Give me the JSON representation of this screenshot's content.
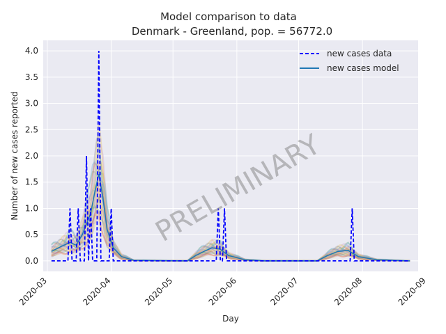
{
  "chart_data": {
    "type": "line",
    "title": "Model comparison to data",
    "subtitle": "Denmark - Greenland, pop. = 56772.0",
    "xlabel": "Day",
    "ylabel": "Number of new cases reported",
    "xlim": [
      "2020-02-28",
      "2020-08-28"
    ],
    "ylim": [
      -0.2,
      4.2
    ],
    "grid": true,
    "legend_position": "top-right",
    "x_ticks": [
      "2020-03-01",
      "2020-04-01",
      "2020-05-01",
      "2020-06-01",
      "2020-07-01",
      "2020-08-01",
      "2020-09-01"
    ],
    "x_tick_labels": [
      "2020-03",
      "2020-04",
      "2020-05",
      "2020-06",
      "2020-07",
      "2020-08",
      "2020-09"
    ],
    "y_ticks": [
      0.0,
      0.5,
      1.0,
      1.5,
      2.0,
      2.5,
      3.0,
      3.5,
      4.0
    ],
    "y_tick_labels": [
      "0.0",
      "0.5",
      "1.0",
      "1.5",
      "2.0",
      "2.5",
      "3.0",
      "3.5",
      "4.0"
    ],
    "watermark": "PRELIMINARY",
    "series": [
      {
        "name": "new cases data",
        "style": "dashed",
        "color": "#0000ff",
        "points": [
          [
            "2020-03-03",
            0
          ],
          [
            "2020-03-11",
            0
          ],
          [
            "2020-03-12",
            1
          ],
          [
            "2020-03-13",
            0
          ],
          [
            "2020-03-15",
            0
          ],
          [
            "2020-03-16",
            1
          ],
          [
            "2020-03-17",
            0
          ],
          [
            "2020-03-19",
            0
          ],
          [
            "2020-03-20",
            2
          ],
          [
            "2020-03-21",
            0
          ],
          [
            "2020-03-22",
            1
          ],
          [
            "2020-03-23",
            0
          ],
          [
            "2020-03-25",
            0
          ],
          [
            "2020-03-26",
            4
          ],
          [
            "2020-03-27",
            0
          ],
          [
            "2020-03-31",
            0
          ],
          [
            "2020-04-01",
            1
          ],
          [
            "2020-04-02",
            0
          ],
          [
            "2020-05-22",
            0
          ],
          [
            "2020-05-23",
            1
          ],
          [
            "2020-05-24",
            0
          ],
          [
            "2020-05-25",
            0
          ],
          [
            "2020-05-26",
            1
          ],
          [
            "2020-05-27",
            0
          ],
          [
            "2020-07-26",
            0
          ],
          [
            "2020-07-27",
            1
          ],
          [
            "2020-07-28",
            0
          ],
          [
            "2020-08-24",
            0
          ]
        ]
      },
      {
        "name": "new cases model",
        "style": "solid",
        "color": "#1f77b4",
        "points": [
          [
            "2020-03-03",
            0.18
          ],
          [
            "2020-03-08",
            0.28
          ],
          [
            "2020-03-12",
            0.35
          ],
          [
            "2020-03-15",
            0.3
          ],
          [
            "2020-03-18",
            0.5
          ],
          [
            "2020-03-22",
            0.9
          ],
          [
            "2020-03-24",
            1.3
          ],
          [
            "2020-03-26",
            1.65
          ],
          [
            "2020-03-28",
            1.2
          ],
          [
            "2020-03-30",
            0.6
          ],
          [
            "2020-04-02",
            0.25
          ],
          [
            "2020-04-06",
            0.08
          ],
          [
            "2020-04-12",
            0.01
          ],
          [
            "2020-05-08",
            0.0
          ],
          [
            "2020-05-12",
            0.1
          ],
          [
            "2020-05-16",
            0.18
          ],
          [
            "2020-05-20",
            0.25
          ],
          [
            "2020-05-24",
            0.22
          ],
          [
            "2020-05-28",
            0.1
          ],
          [
            "2020-06-05",
            0.02
          ],
          [
            "2020-06-15",
            0.0
          ],
          [
            "2020-07-10",
            0.0
          ],
          [
            "2020-07-15",
            0.1
          ],
          [
            "2020-07-20",
            0.18
          ],
          [
            "2020-07-25",
            0.2
          ],
          [
            "2020-07-30",
            0.08
          ],
          [
            "2020-08-08",
            0.02
          ],
          [
            "2020-08-24",
            0.0
          ]
        ]
      }
    ],
    "ensemble_colors": [
      "#f5a05a",
      "#7fbf7f",
      "#c8a0d8",
      "#e8c060",
      "#8c8c8c",
      "#d07070",
      "#70a8d0"
    ]
  }
}
